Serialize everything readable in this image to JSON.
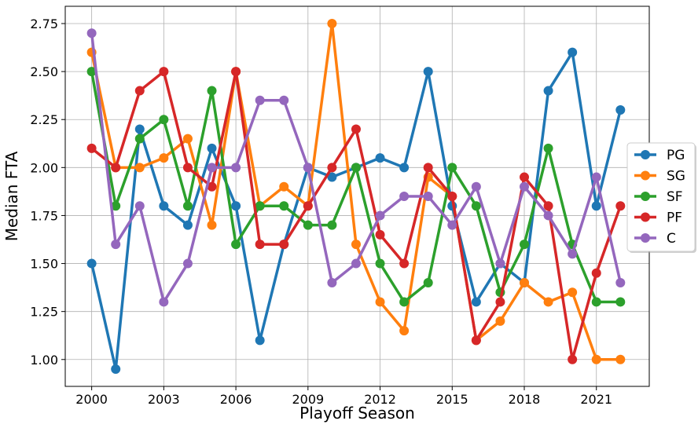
{
  "chart_data": {
    "type": "line",
    "title": "",
    "xlabel": "Playoff Season",
    "ylabel": "Median FTA",
    "x": [
      2000,
      2001,
      2002,
      2003,
      2004,
      2005,
      2006,
      2007,
      2008,
      2009,
      2010,
      2011,
      2012,
      2013,
      2014,
      2015,
      2016,
      2017,
      2018,
      2019,
      2020,
      2021,
      2022
    ],
    "xlim": [
      1998.9,
      2023.2
    ],
    "ylim": [
      0.86,
      2.84
    ],
    "xticks": [
      2000,
      2003,
      2006,
      2009,
      2012,
      2015,
      2018,
      2021
    ],
    "xtick_labels": [
      "2000",
      "2003",
      "2006",
      "2009",
      "2012",
      "2015",
      "2018",
      "2021"
    ],
    "yticks": [
      1.0,
      1.25,
      1.5,
      1.75,
      2.0,
      2.25,
      2.5,
      2.75
    ],
    "ytick_labels": [
      "1.00",
      "1.25",
      "1.50",
      "1.75",
      "2.00",
      "2.25",
      "2.50",
      "2.75"
    ],
    "grid": true,
    "legend_position": "center-right",
    "series": [
      {
        "name": "PG",
        "color": "#1f77b4",
        "values": [
          1.5,
          0.95,
          2.2,
          1.8,
          1.7,
          2.1,
          1.8,
          1.1,
          1.6,
          2.0,
          1.95,
          2.0,
          2.05,
          2.0,
          2.5,
          1.8,
          1.3,
          1.5,
          1.4,
          2.4,
          2.6,
          1.8,
          2.3
        ]
      },
      {
        "name": "SG",
        "color": "#ff7f0e",
        "values": [
          2.6,
          2.0,
          2.0,
          2.05,
          2.15,
          1.7,
          2.5,
          1.8,
          1.9,
          1.8,
          2.75,
          1.6,
          1.3,
          1.15,
          1.95,
          1.85,
          1.1,
          1.2,
          1.4,
          1.3,
          1.35,
          1.0,
          1.0
        ]
      },
      {
        "name": "SF",
        "color": "#2ca02c",
        "values": [
          2.5,
          1.8,
          2.15,
          2.25,
          1.8,
          2.4,
          1.6,
          1.8,
          1.8,
          1.7,
          1.7,
          2.0,
          1.5,
          1.3,
          1.4,
          2.0,
          1.8,
          1.35,
          1.6,
          2.1,
          1.6,
          1.3,
          1.3
        ]
      },
      {
        "name": "PF",
        "color": "#d62728",
        "values": [
          2.1,
          2.0,
          2.4,
          2.5,
          2.0,
          1.9,
          2.5,
          1.6,
          1.6,
          1.8,
          2.0,
          2.2,
          1.65,
          1.5,
          2.0,
          1.85,
          1.1,
          1.3,
          1.95,
          1.8,
          1.0,
          1.45,
          1.8
        ]
      },
      {
        "name": "C",
        "color": "#9467bd",
        "values": [
          2.7,
          1.6,
          1.8,
          1.3,
          1.5,
          2.0,
          2.0,
          2.35,
          2.35,
          2.0,
          1.4,
          1.5,
          1.75,
          1.85,
          1.85,
          1.7,
          1.9,
          1.5,
          1.9,
          1.75,
          1.55,
          1.95,
          1.4
        ]
      }
    ]
  }
}
